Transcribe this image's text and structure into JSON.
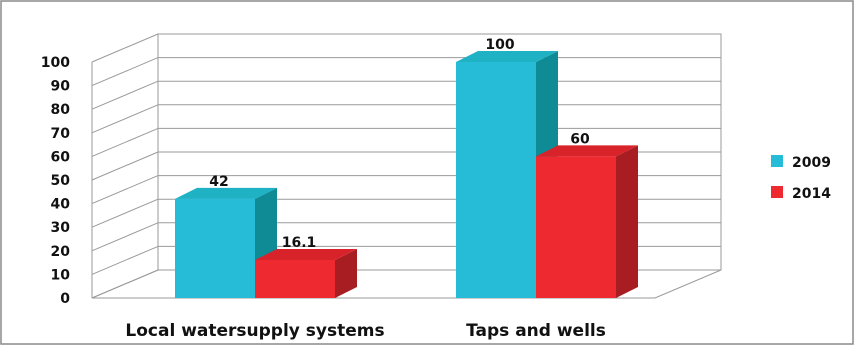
{
  "chart_data": {
    "type": "bar",
    "style": "3d-clustered-column",
    "categories": [
      "Local watersupply systems",
      "Taps and wells"
    ],
    "series": [
      {
        "name": "2009",
        "values": [
          42,
          100
        ],
        "color": "#26bcd7",
        "side_color": "#0f8b95",
        "top_color": "#1fb1c4"
      },
      {
        "name": "2014",
        "values": [
          16.1,
          60
        ],
        "color": "#ee2a30",
        "side_color": "#a81d22",
        "top_color": "#d8232a"
      }
    ],
    "data_labels": [
      [
        "42",
        "100"
      ],
      [
        "16.1",
        "60"
      ]
    ],
    "ylim": [
      0,
      100
    ],
    "yticks": [
      "0",
      "10",
      "20",
      "30",
      "40",
      "50",
      "60",
      "70",
      "80",
      "90",
      "100"
    ],
    "grid": true,
    "legend_position": "right"
  }
}
